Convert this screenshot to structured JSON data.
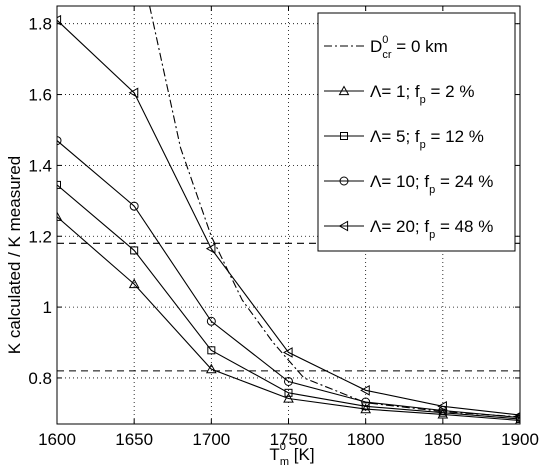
{
  "chart_data": {
    "type": "line",
    "title": "",
    "xlabel": {
      "main": "T",
      "sup": "0",
      "sub": "m",
      "unit": " [K]"
    },
    "ylabel": "K calculated / K measured",
    "xlim": [
      1600,
      1900
    ],
    "ylim": [
      0.67,
      1.85
    ],
    "grid": true,
    "legend_position": "top-right",
    "x_ticks": [
      1600,
      1650,
      1700,
      1750,
      1800,
      1850,
      1900
    ],
    "x_tick_labels": [
      "1600",
      "1650",
      "1700",
      "1750",
      "1800",
      "1850",
      "1900"
    ],
    "y_ticks": [
      0.8,
      1.0,
      1.2,
      1.4,
      1.6,
      1.8
    ],
    "y_tick_labels": [
      "0.8",
      "1",
      "1.2",
      "1.4",
      "1.6",
      "1.8"
    ],
    "reference_lines": [
      1.18,
      0.82
    ],
    "series": [
      {
        "name": "D_cr^0 = 0 km",
        "legend": {
          "pre": "D",
          "sup": "0",
          "sub": "cr",
          "post": " = 0 km"
        },
        "style": "dashdot",
        "marker": "none",
        "x": [
          1660,
          1680,
          1700,
          1720,
          1740,
          1760,
          1800,
          1850,
          1900
        ],
        "y": [
          1.85,
          1.45,
          1.2,
          1.02,
          0.9,
          0.8,
          0.73,
          0.705,
          0.69
        ]
      },
      {
        "name": "Λ= 1; f_p = 2 %",
        "legend": {
          "pre": "Λ= 1; f",
          "sup": "",
          "sub": "p",
          "post": " = 2 %"
        },
        "style": "solid",
        "marker": "triangle-up",
        "x": [
          1600,
          1650,
          1700,
          1750,
          1800,
          1850,
          1900
        ],
        "y": [
          1.255,
          1.065,
          0.825,
          0.742,
          0.712,
          0.697,
          0.68
        ]
      },
      {
        "name": "Λ= 5; f_p = 12 %",
        "legend": {
          "pre": "Λ= 5; f",
          "sup": "",
          "sub": "p",
          "post": " = 12 %"
        },
        "style": "solid",
        "marker": "square",
        "x": [
          1600,
          1650,
          1700,
          1750,
          1800,
          1850,
          1900
        ],
        "y": [
          1.345,
          1.16,
          0.878,
          0.758,
          0.72,
          0.702,
          0.684
        ]
      },
      {
        "name": "Λ= 10; f_p = 24 %",
        "legend": {
          "pre": "Λ= 10; f",
          "sup": "",
          "sub": "p",
          "post": " = 24 %"
        },
        "style": "solid",
        "marker": "circle",
        "x": [
          1600,
          1650,
          1700,
          1750,
          1800,
          1850,
          1900
        ],
        "y": [
          1.47,
          1.285,
          0.96,
          0.79,
          0.732,
          0.708,
          0.688
        ]
      },
      {
        "name": "Λ= 20; f_p = 48 %",
        "legend": {
          "pre": "Λ= 20; f",
          "sup": "",
          "sub": "p",
          "post": " = 48 %"
        },
        "style": "solid",
        "marker": "triangle-left",
        "x": [
          1600,
          1650,
          1700,
          1750,
          1800,
          1850,
          1900
        ],
        "y": [
          1.81,
          1.605,
          1.165,
          0.872,
          0.765,
          0.72,
          0.695
        ]
      }
    ]
  }
}
